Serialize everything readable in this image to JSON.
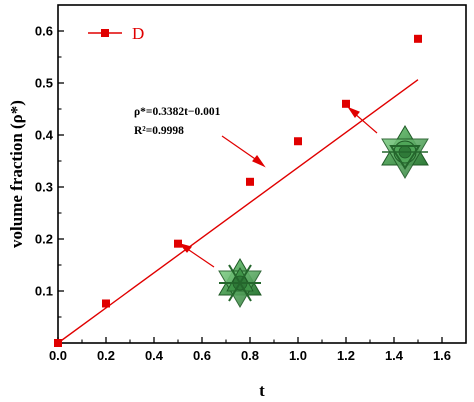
{
  "chart_data": {
    "type": "line",
    "xlabel": "t",
    "ylabel": "volume fraction (ρ*)",
    "xlim": [
      0,
      1.7
    ],
    "ylim": [
      0,
      0.65
    ],
    "x_ticks": [
      "0.0",
      "0.2",
      "0.4",
      "0.6",
      "0.8",
      "1.0",
      "1.2",
      "1.4",
      "1.6"
    ],
    "y_ticks": [
      "0.1",
      "0.2",
      "0.3",
      "0.4",
      "0.5",
      "0.6"
    ],
    "grid": false,
    "legend_position": "top-left",
    "series": [
      {
        "name": "D",
        "color": "#e00000",
        "marker": "square",
        "x": [
          0.0,
          0.2,
          0.5,
          0.8,
          1.0,
          1.2,
          1.5
        ],
        "y": [
          0.0,
          0.076,
          0.191,
          0.31,
          0.388,
          0.46,
          0.585
        ]
      }
    ],
    "fit": {
      "slope": 0.3382,
      "intercept": -0.001,
      "x_range": [
        0.0,
        1.5
      ]
    },
    "annotations": {
      "equation": "ρ*=0.3382t−0.001",
      "r_squared": "R²=0.9998"
    },
    "insets": [
      {
        "name": "lattice-structure-t0.5",
        "x": 0.5,
        "y": 0.191
      },
      {
        "name": "lattice-structure-t1.2",
        "x": 1.2,
        "y": 0.46
      }
    ]
  }
}
